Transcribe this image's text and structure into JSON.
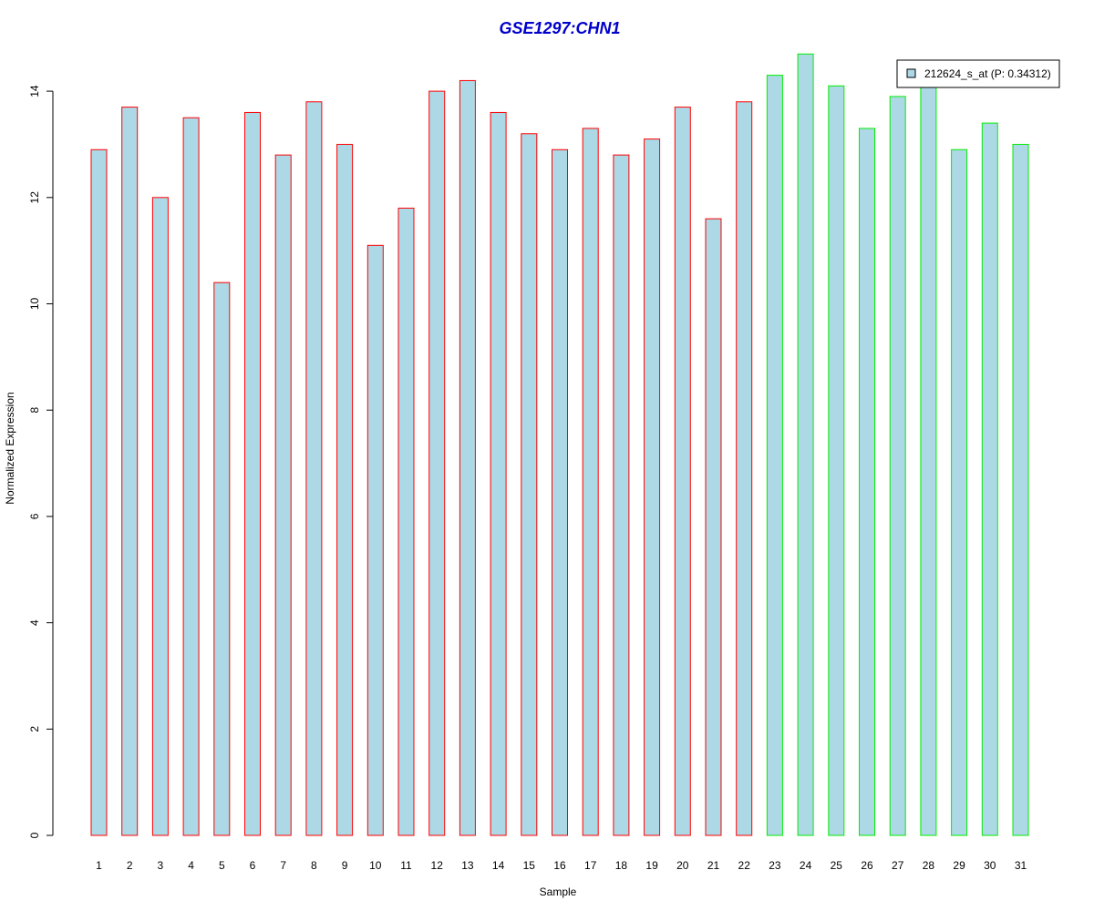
{
  "chart_data": {
    "type": "bar",
    "title": "GSE1297:CHN1",
    "xlabel": "Sample",
    "ylabel": "Normalized Expression",
    "categories": [
      "1",
      "2",
      "3",
      "4",
      "5",
      "6",
      "7",
      "8",
      "9",
      "10",
      "11",
      "12",
      "13",
      "14",
      "15",
      "16",
      "17",
      "18",
      "19",
      "20",
      "21",
      "22",
      "23",
      "24",
      "25",
      "26",
      "27",
      "28",
      "29",
      "30",
      "31"
    ],
    "values": [
      12.9,
      13.7,
      12.0,
      13.5,
      10.4,
      13.6,
      12.8,
      13.8,
      13.0,
      11.1,
      11.8,
      14.0,
      14.2,
      13.6,
      13.2,
      12.9,
      13.3,
      12.8,
      13.1,
      13.7,
      11.6,
      13.8,
      14.3,
      14.7,
      14.1,
      13.3,
      13.9,
      14.1,
      12.9,
      13.4,
      13.0
    ],
    "groups": [
      "red",
      "red",
      "red",
      "red",
      "red",
      "red",
      "red",
      "red",
      "red",
      "red",
      "red",
      "red",
      "red",
      "red",
      "red",
      "red",
      "red",
      "red",
      "red",
      "red",
      "red",
      "red",
      "green",
      "green",
      "green",
      "green",
      "green",
      "green",
      "green",
      "green",
      "green"
    ],
    "yticks": [
      "0",
      "2",
      "4",
      "6",
      "8",
      "10",
      "12",
      "14"
    ],
    "ylim": [
      0,
      14.8
    ],
    "grid": false,
    "legend": {
      "label": "212624_s_at (P: 0.34312)",
      "placement": "top-right"
    },
    "colors": {
      "title": "#0000cc",
      "bar_fill": "#add8e6",
      "border_red": "#ff0000",
      "border_green": "#00ee00",
      "axis": "#000000"
    }
  }
}
